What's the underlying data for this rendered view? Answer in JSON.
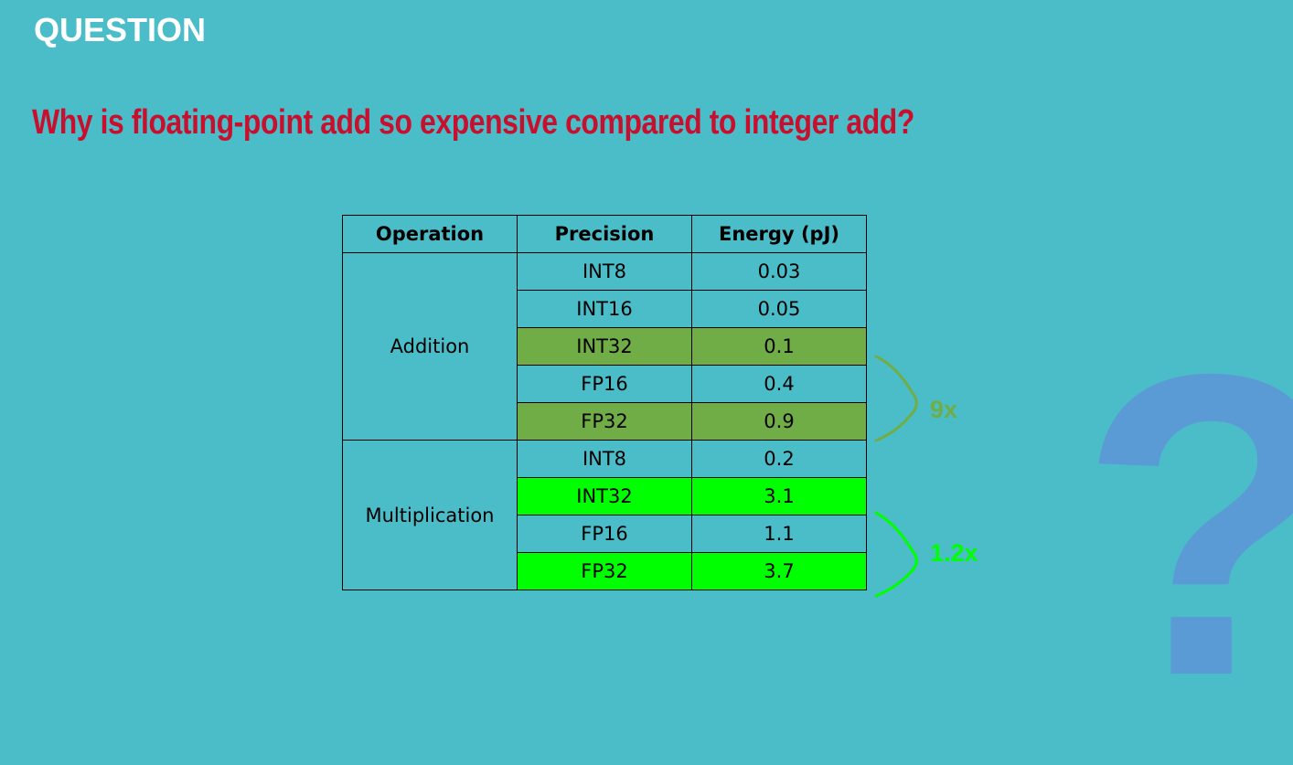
{
  "slide": {
    "label": "QUESTION",
    "question": "Why is floating-point add so expensive compared to integer add?"
  },
  "table": {
    "headers": [
      "Operation",
      "Precision",
      "Energy (pJ)"
    ],
    "groups": [
      {
        "operation": "Addition",
        "rows": [
          {
            "precision": "INT8",
            "energy": "0.03"
          },
          {
            "precision": "INT16",
            "energy": "0.05"
          },
          {
            "precision": "INT32",
            "energy": "0.1"
          },
          {
            "precision": "FP16",
            "energy": "0.4"
          },
          {
            "precision": "FP32",
            "energy": "0.9"
          }
        ]
      },
      {
        "operation": "Multiplication",
        "rows": [
          {
            "precision": "INT8",
            "energy": "0.2"
          },
          {
            "precision": "INT32",
            "energy": "3.1"
          },
          {
            "precision": "FP16",
            "energy": "1.1"
          },
          {
            "precision": "FP32",
            "energy": "3.7"
          }
        ]
      }
    ]
  },
  "annotations": {
    "addition_ratio": "9x",
    "multiplication_ratio": "1.2x"
  },
  "colors": {
    "background": "#4bbdc8",
    "question_text": "#c8102e",
    "addition_highlight": "#70ad47",
    "multiplication_highlight": "#00ff00",
    "question_mark": "#5b9bd5"
  },
  "icons": {
    "decoration": "question-mark-icon"
  }
}
